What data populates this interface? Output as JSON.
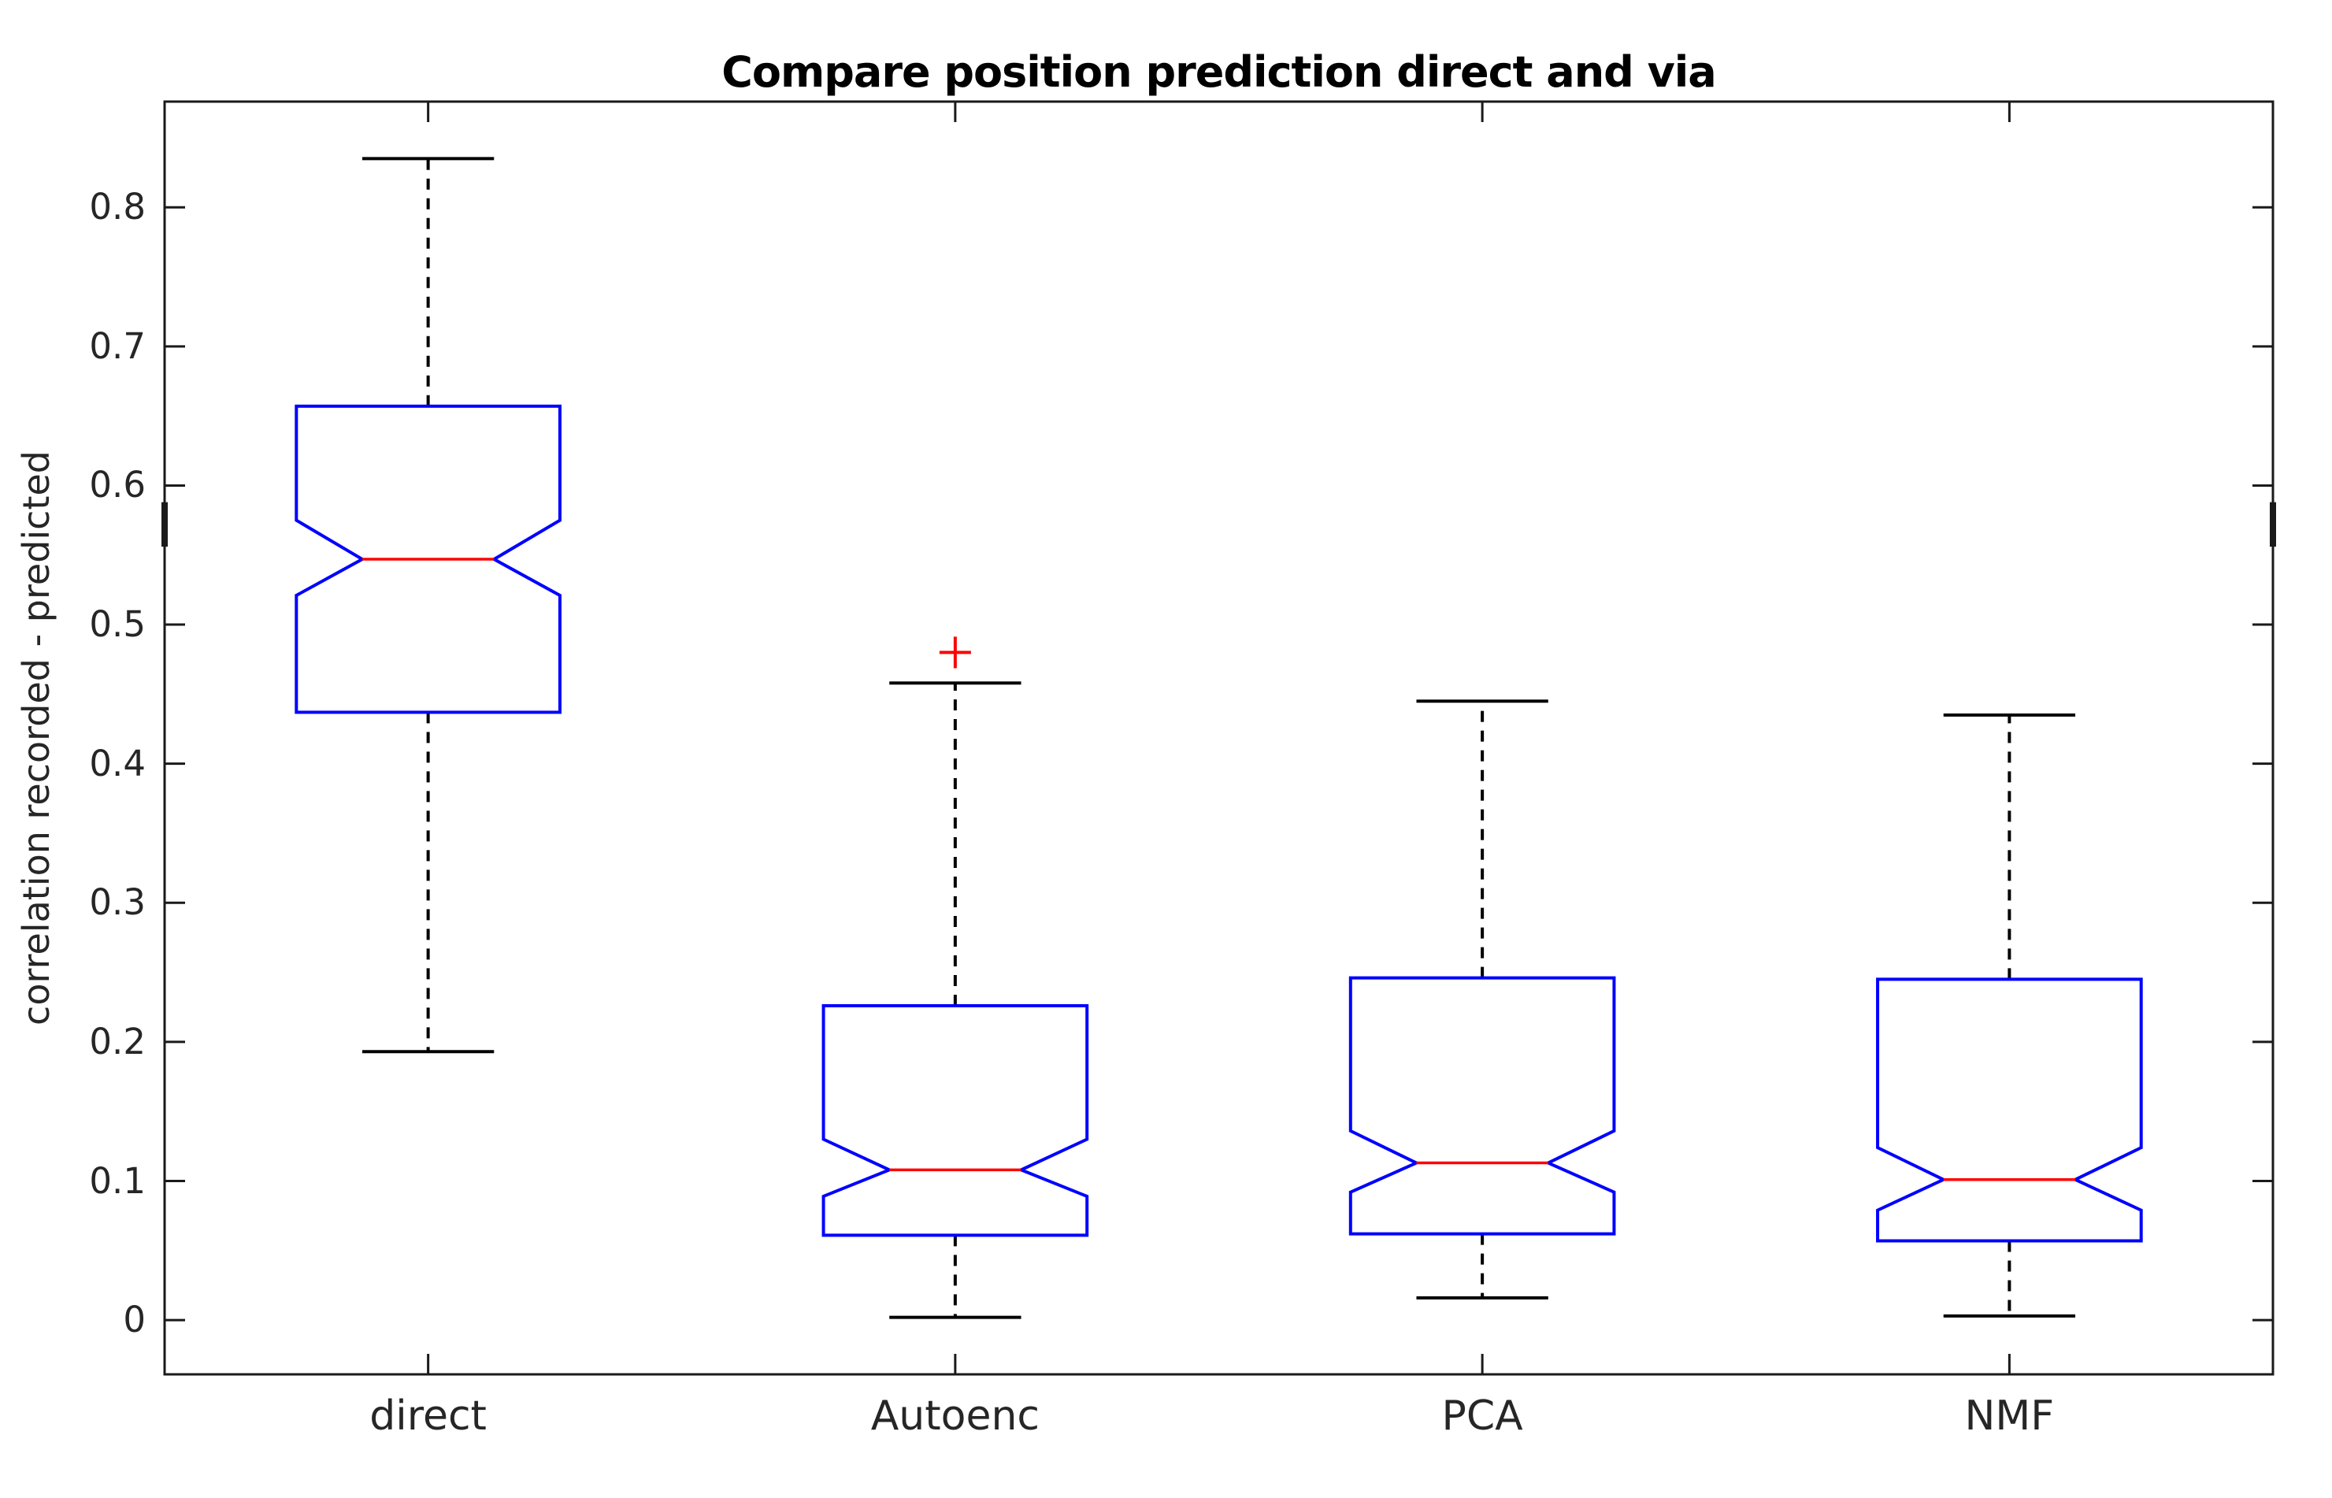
{
  "chart_data": {
    "type": "boxplot",
    "title": "Compare position prediction direct and via",
    "ylabel": "correlation recorded - predicted",
    "xlabel": "",
    "categories": [
      "direct",
      "Autoenc",
      "PCA",
      "NMF"
    ],
    "ylim": [
      -0.039,
      0.876
    ],
    "yticks": [
      0,
      0.1,
      0.2,
      0.3,
      0.4,
      0.5,
      0.6,
      0.7,
      0.8
    ],
    "ytick_labels": [
      "0",
      "0.1",
      "0.2",
      "0.3",
      "0.4",
      "0.5",
      "0.6",
      "0.7",
      "0.8"
    ],
    "grid": false,
    "notched": true,
    "legend": null,
    "series": [
      {
        "name": "direct",
        "whisker_low": 0.193,
        "q1": 0.437,
        "median": 0.547,
        "q3": 0.657,
        "whisker_high": 0.835,
        "notch_low": 0.521,
        "notch_high": 0.575,
        "outliers": []
      },
      {
        "name": "Autoenc",
        "whisker_low": 0.002,
        "q1": 0.061,
        "median": 0.108,
        "q3": 0.226,
        "whisker_high": 0.458,
        "notch_low": 0.089,
        "notch_high": 0.13,
        "outliers": [
          0.48
        ]
      },
      {
        "name": "PCA",
        "whisker_low": 0.016,
        "q1": 0.062,
        "median": 0.113,
        "q3": 0.246,
        "whisker_high": 0.445,
        "notch_low": 0.092,
        "notch_high": 0.136,
        "outliers": []
      },
      {
        "name": "NMF",
        "whisker_low": 0.003,
        "q1": 0.057,
        "median": 0.101,
        "q3": 0.245,
        "whisker_high": 0.435,
        "notch_low": 0.079,
        "notch_high": 0.124,
        "outliers": []
      }
    ],
    "colors": {
      "box": "#0000ff",
      "median": "#ff0000",
      "whisker": "#000000",
      "cap": "#000000",
      "outlier": "#ff0000",
      "axis": "#1a1a1a",
      "text": "#262626",
      "background": "#ffffff"
    },
    "edge_marks": [
      {
        "edge": "left",
        "from": 0.556,
        "to": 0.588
      },
      {
        "edge": "right",
        "from": 0.556,
        "to": 0.588
      }
    ]
  }
}
